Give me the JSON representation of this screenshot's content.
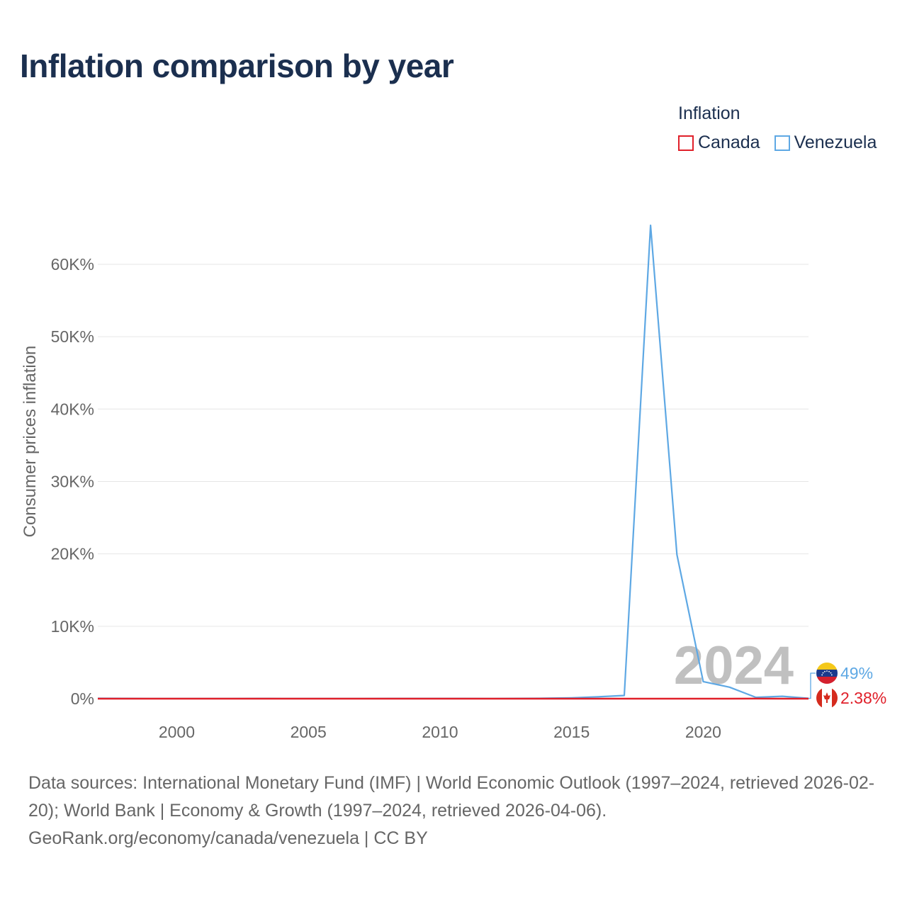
{
  "title": "Inflation comparison by year",
  "legend": {
    "title": "Inflation",
    "items": [
      {
        "name": "Canada",
        "color": "#e0202a"
      },
      {
        "name": "Venezuela",
        "color": "#5ea8e4"
      }
    ]
  },
  "chart_data": {
    "type": "line",
    "title": "Inflation comparison by year",
    "xlabel": "",
    "ylabel": "Consumer prices inflation",
    "xlim": [
      1997,
      2024
    ],
    "ylim": [
      0,
      69000
    ],
    "x_ticks": [
      2000,
      2005,
      2010,
      2015,
      2020
    ],
    "y_ticks": [
      0,
      10000,
      20000,
      30000,
      40000,
      50000,
      60000
    ],
    "y_tick_labels": [
      "0%",
      "10K%",
      "20K%",
      "30K%",
      "40K%",
      "50K%",
      "60K%"
    ],
    "x": [
      1997,
      1998,
      1999,
      2000,
      2001,
      2002,
      2003,
      2004,
      2005,
      2006,
      2007,
      2008,
      2009,
      2010,
      2011,
      2012,
      2013,
      2014,
      2015,
      2016,
      2017,
      2018,
      2019,
      2020,
      2021,
      2022,
      2023,
      2024
    ],
    "series": [
      {
        "name": "Venezuela",
        "color": "#5ea8e4",
        "values": [
          50,
          36,
          24,
          16,
          12,
          22,
          31,
          22,
          16,
          14,
          19,
          31,
          27,
          28,
          26,
          21,
          41,
          62,
          122,
          255,
          438,
          65374,
          19906,
          2355,
          1588,
          186,
          337,
          49
        ]
      },
      {
        "name": "Canada",
        "color": "#e0202a",
        "values": [
          1.6,
          1.0,
          1.7,
          2.7,
          2.5,
          2.3,
          2.8,
          1.9,
          2.2,
          2.0,
          2.1,
          2.4,
          0.3,
          1.8,
          2.9,
          1.5,
          0.9,
          1.9,
          1.1,
          1.4,
          1.6,
          2.3,
          1.9,
          0.7,
          3.4,
          6.8,
          3.9,
          2.38
        ]
      }
    ],
    "annotation_year": "2024",
    "end_labels": [
      {
        "country": "Venezuela",
        "text": "49%",
        "color": "#5ea8e4"
      },
      {
        "country": "Canada",
        "text": "2.38%",
        "color": "#e0202a"
      }
    ]
  },
  "footer": {
    "sources": "Data sources: International Monetary Fund (IMF) | World Economic Outlook (1997–2024, retrieved 2026-02-20); World Bank | Economy & Growth (1997–2024, retrieved 2026-04-06).",
    "credit": "GeoRank.org/economy/canada/venezuela | CC BY"
  }
}
